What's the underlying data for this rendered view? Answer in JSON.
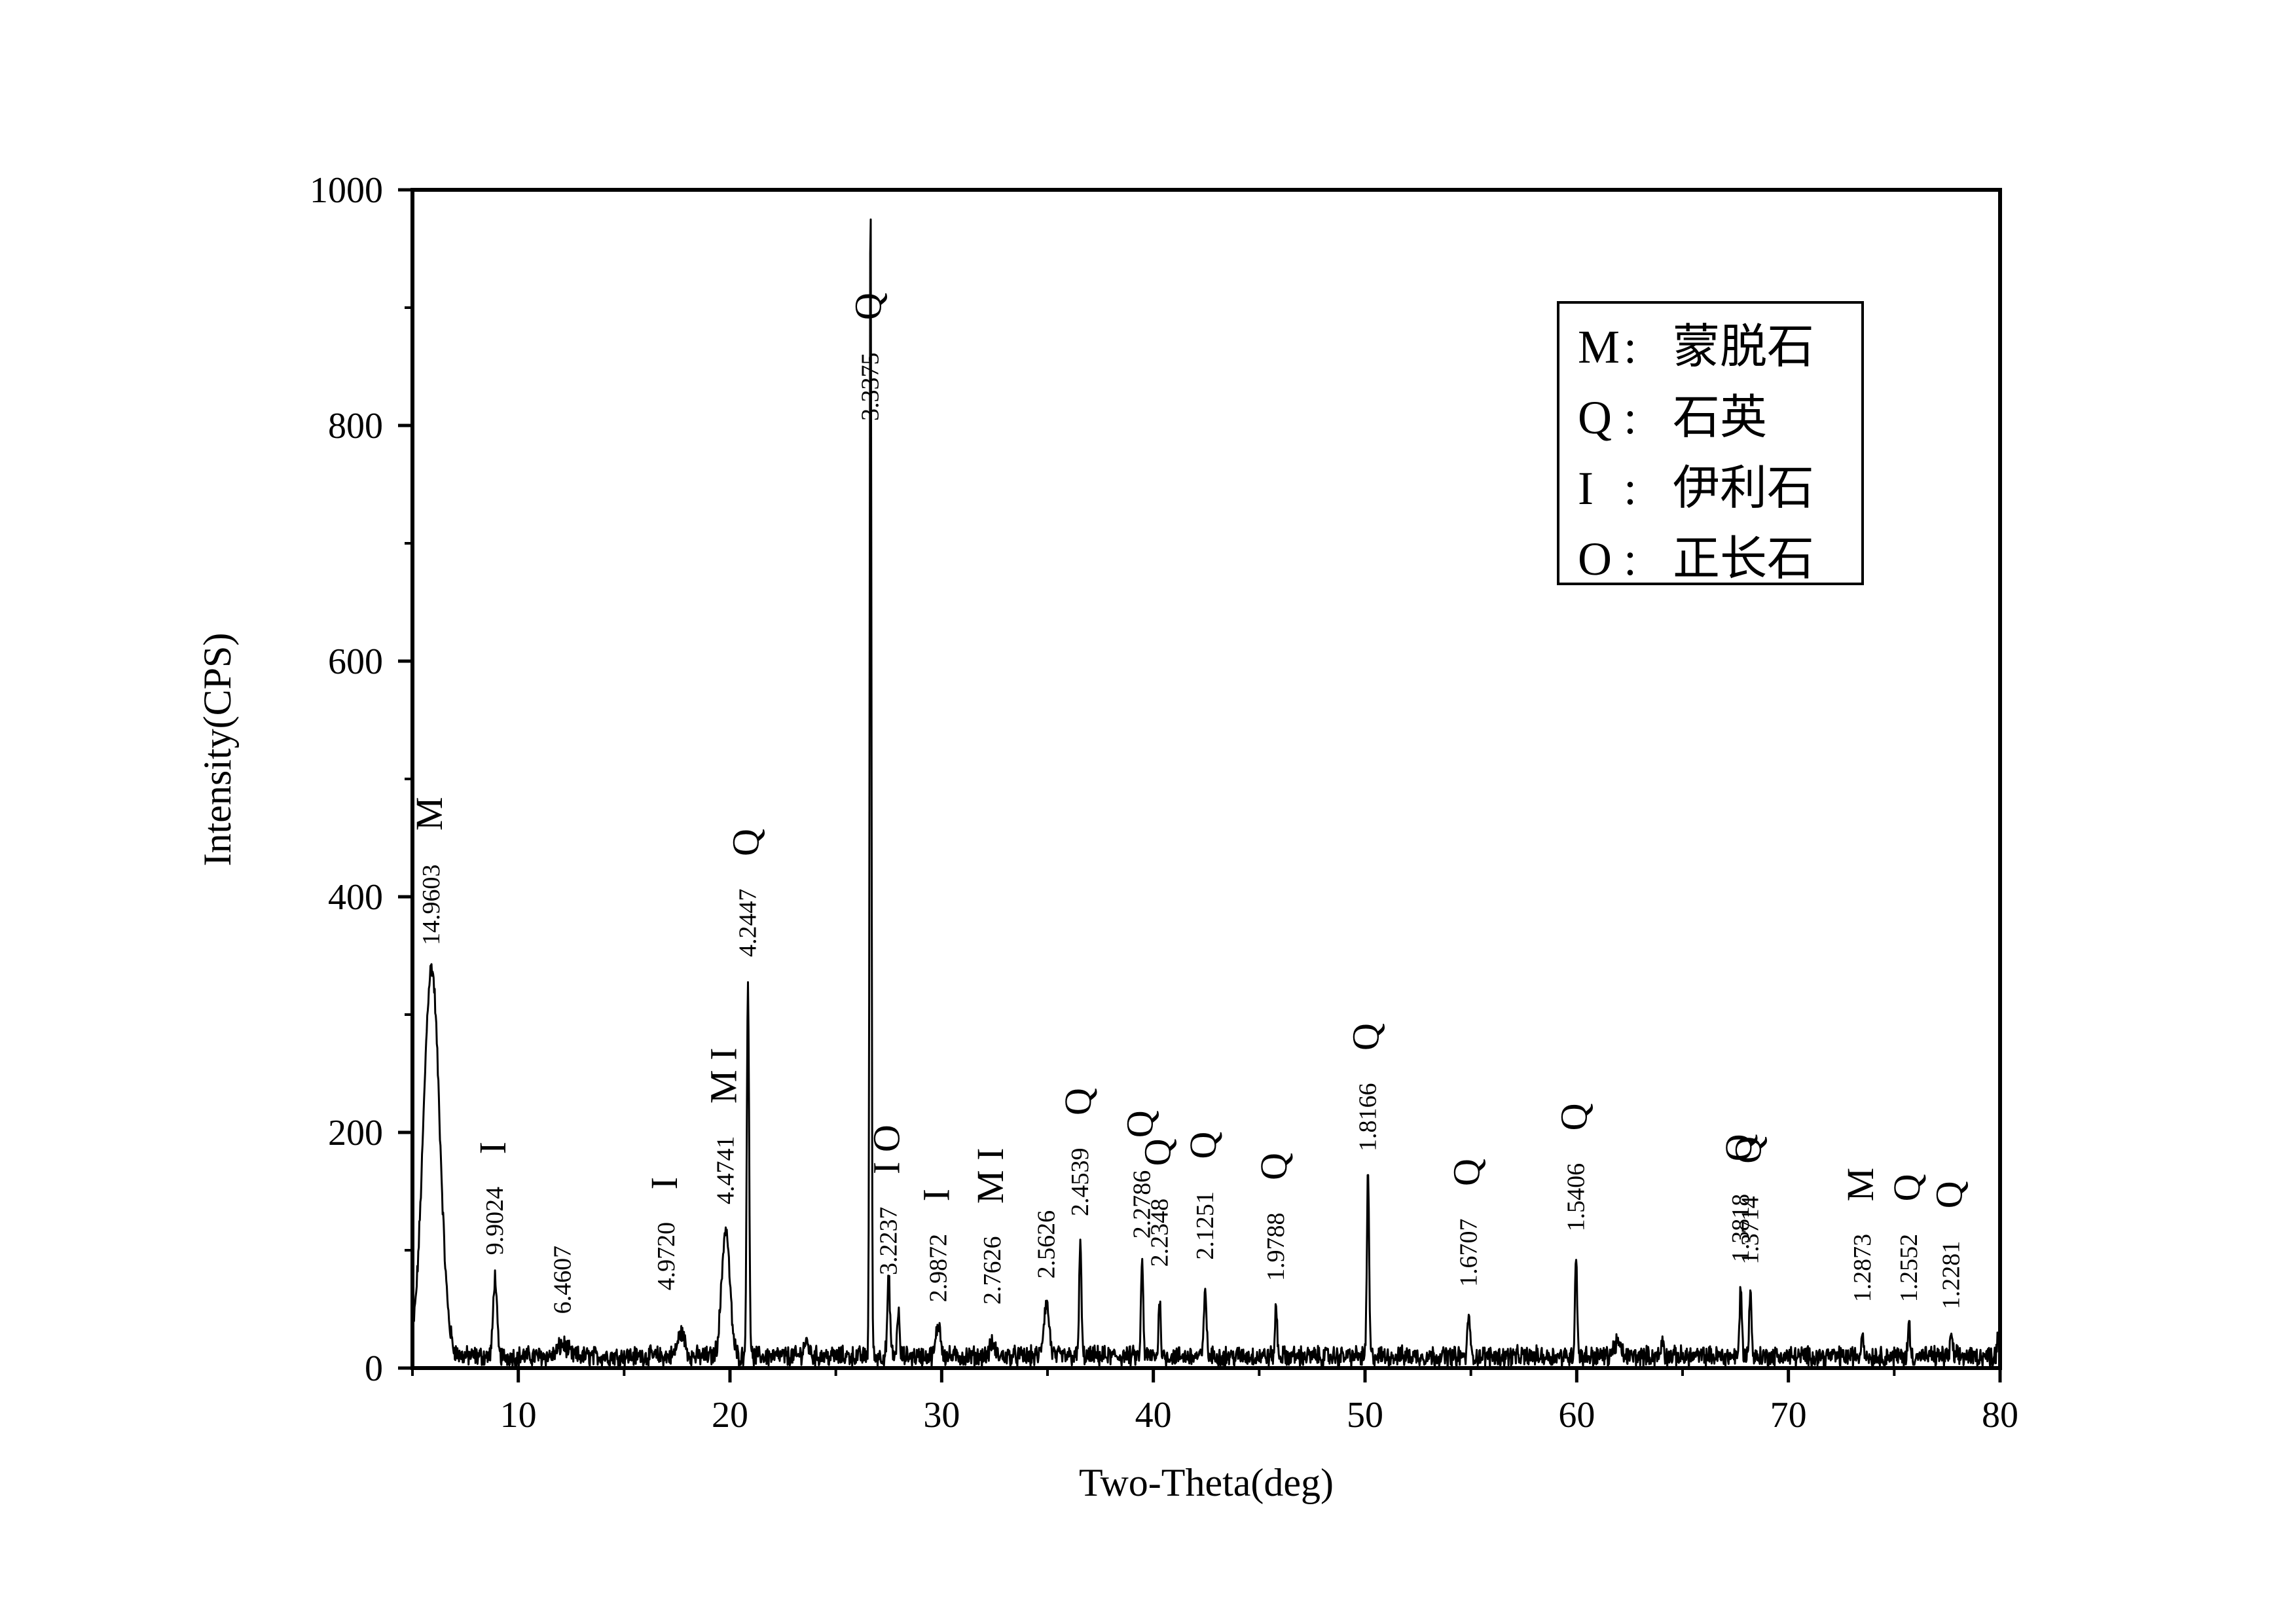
{
  "chart_data": {
    "type": "line",
    "xlabel": "Two-Theta(deg)",
    "ylabel": "Intensity(CPS)",
    "xlim": [
      5,
      80
    ],
    "ylim": [
      0,
      1000
    ],
    "xticks": [
      10,
      20,
      30,
      40,
      50,
      60,
      70,
      80
    ],
    "yticks": [
      0,
      200,
      400,
      600,
      800,
      1000
    ],
    "grid": false,
    "legend_position": "top-right",
    "legend": [
      {
        "code": "M",
        "sep": ":",
        "name": "蒙脱石"
      },
      {
        "code": "Q",
        "sep": ":",
        "name": "石英"
      },
      {
        "code": "I",
        "sep": ":",
        "name": "伊利石"
      },
      {
        "code": "O",
        "sep": ":",
        "name": "正长石"
      }
    ],
    "series": [
      {
        "color": "#000000",
        "baseline": 10,
        "peaks": [
          {
            "x": 5.9,
            "y": 340,
            "w": 0.9
          },
          {
            "x": 8.9,
            "y": 78,
            "w": 0.2
          },
          {
            "x": 12.1,
            "y": 20,
            "w": 0.5
          },
          {
            "x": 17.7,
            "y": 30,
            "w": 0.4
          },
          {
            "x": 19.8,
            "y": 118,
            "w": 0.45
          },
          {
            "x": 20.85,
            "y": 328,
            "w": 0.13
          },
          {
            "x": 23.6,
            "y": 22,
            "w": 0.3
          },
          {
            "x": 26.64,
            "y": 1000,
            "w": 0.1
          },
          {
            "x": 27.5,
            "y": 75,
            "w": 0.15
          },
          {
            "x": 27.95,
            "y": 50,
            "w": 0.12
          },
          {
            "x": 29.85,
            "y": 38,
            "w": 0.25
          },
          {
            "x": 32.4,
            "y": 20,
            "w": 0.3
          },
          {
            "x": 34.95,
            "y": 55,
            "w": 0.3
          },
          {
            "x": 36.55,
            "y": 110,
            "w": 0.12
          },
          {
            "x": 39.47,
            "y": 92,
            "w": 0.12
          },
          {
            "x": 40.3,
            "y": 57,
            "w": 0.12
          },
          {
            "x": 42.45,
            "y": 72,
            "w": 0.13
          },
          {
            "x": 45.8,
            "y": 52,
            "w": 0.12
          },
          {
            "x": 50.14,
            "y": 165,
            "w": 0.12
          },
          {
            "x": 54.9,
            "y": 50,
            "w": 0.12
          },
          {
            "x": 59.97,
            "y": 98,
            "w": 0.12
          },
          {
            "x": 61.9,
            "y": 22,
            "w": 0.35
          },
          {
            "x": 64.05,
            "y": 25,
            "w": 0.12
          },
          {
            "x": 67.75,
            "y": 72,
            "w": 0.12
          },
          {
            "x": 68.2,
            "y": 68,
            "w": 0.12
          },
          {
            "x": 73.5,
            "y": 33,
            "w": 0.12
          },
          {
            "x": 75.7,
            "y": 37,
            "w": 0.12
          },
          {
            "x": 77.7,
            "y": 28,
            "w": 0.12
          },
          {
            "x": 79.9,
            "y": 30,
            "w": 0.1
          }
        ]
      }
    ],
    "annotations": [
      {
        "x": 5.9,
        "y": 345,
        "d": "14.9603",
        "p": "M"
      },
      {
        "x": 8.9,
        "y": 82,
        "d": "9.9024",
        "p": "I"
      },
      {
        "x": 12.1,
        "y": 32,
        "d": "6.4607",
        "p": ""
      },
      {
        "x": 17.0,
        "y": 52,
        "d": "4.9720",
        "p": "I"
      },
      {
        "x": 19.8,
        "y": 125,
        "d": "4.4741",
        "p": "M I"
      },
      {
        "x": 20.85,
        "y": 335,
        "d": "4.2447",
        "p": "Q"
      },
      {
        "x": 26.64,
        "y": 790,
        "d": "3.3375",
        "p": "Q"
      },
      {
        "x": 27.5,
        "y": 65,
        "d": "3.2237",
        "p": "I O"
      },
      {
        "x": 29.85,
        "y": 42,
        "d": "2.9872",
        "p": "I"
      },
      {
        "x": 32.4,
        "y": 40,
        "d": "2.7626",
        "p": "M I"
      },
      {
        "x": 34.95,
        "y": 62,
        "d": "2.5626",
        "p": ""
      },
      {
        "x": 36.55,
        "y": 115,
        "d": "2.4539",
        "p": "Q"
      },
      {
        "x": 39.47,
        "y": 96,
        "d": "2.2786",
        "p": "Q"
      },
      {
        "x": 40.3,
        "y": 72,
        "d": "2.2348",
        "p": "Q"
      },
      {
        "x": 42.45,
        "y": 78,
        "d": "2.1251",
        "p": "Q"
      },
      {
        "x": 45.8,
        "y": 60,
        "d": "1.9788",
        "p": "Q"
      },
      {
        "x": 50.14,
        "y": 170,
        "d": "1.8166",
        "p": "Q"
      },
      {
        "x": 54.9,
        "y": 55,
        "d": "1.6707",
        "p": "Q"
      },
      {
        "x": 59.97,
        "y": 102,
        "d": "1.5406",
        "p": "Q"
      },
      {
        "x": 67.75,
        "y": 76,
        "d": "1.3818",
        "p": "Q"
      },
      {
        "x": 68.2,
        "y": 74,
        "d": "1.3714",
        "p": "Q"
      },
      {
        "x": 73.5,
        "y": 42,
        "d": "1.2873",
        "p": "M"
      },
      {
        "x": 75.7,
        "y": 42,
        "d": "1.2552",
        "p": "Q"
      },
      {
        "x": 77.7,
        "y": 36,
        "d": "1.2281",
        "p": "Q"
      }
    ]
  }
}
